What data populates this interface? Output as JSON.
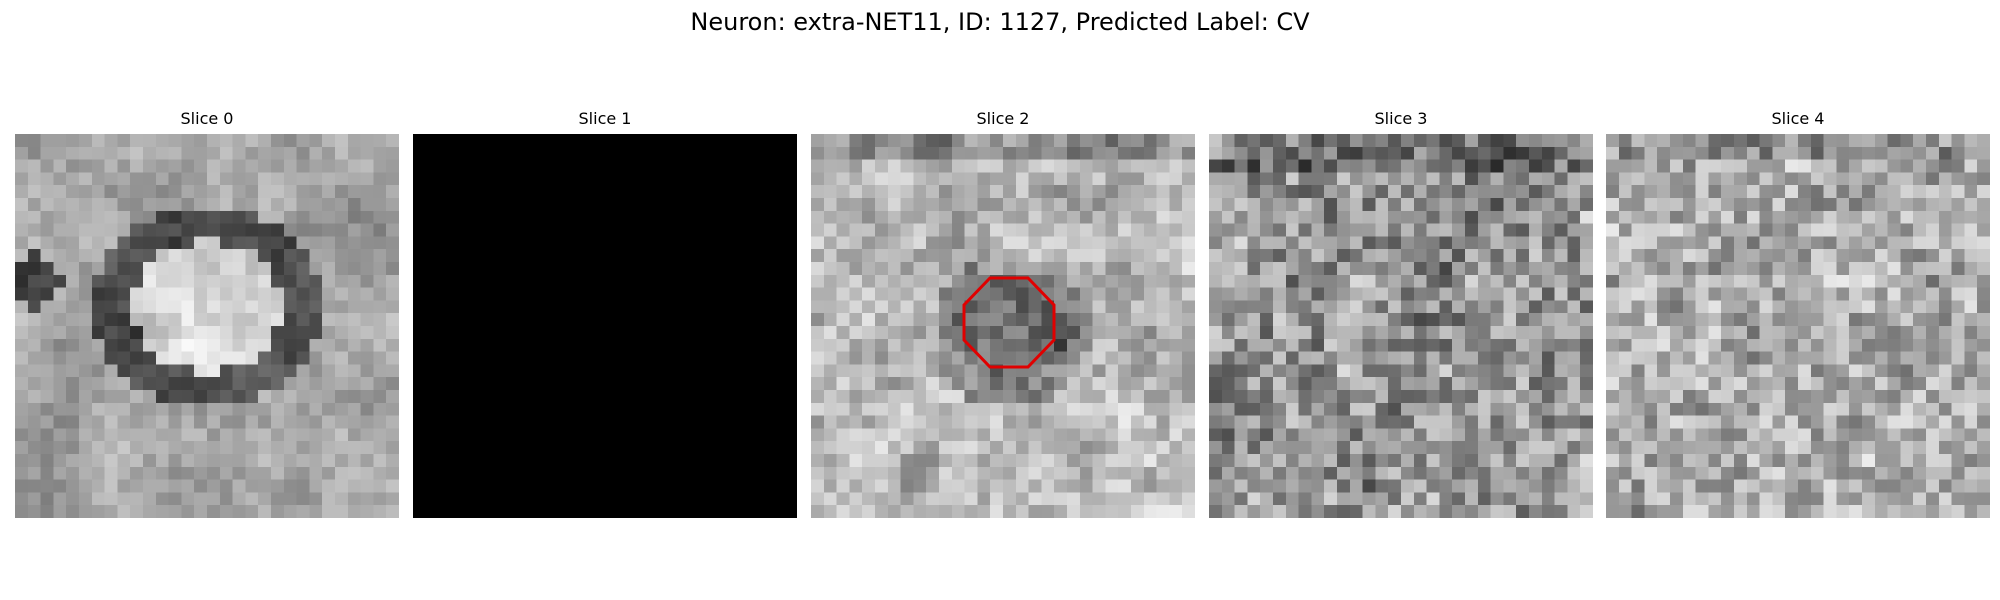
{
  "figure": {
    "title": "Neuron: extra-NET11, ID: 1127, Predicted Label: CV"
  },
  "panels": [
    {
      "title": "Slice 0",
      "image": "grayscale-patch",
      "style": "ring-cell",
      "seed": 11
    },
    {
      "title": "Slice 1",
      "image": "blank-black",
      "style": "black",
      "seed": 0
    },
    {
      "title": "Slice 2",
      "image": "grayscale-patch-with-roi",
      "style": "dark-center",
      "seed": 23
    },
    {
      "title": "Slice 3",
      "image": "grayscale-patch",
      "style": "noisy-mid",
      "seed": 37
    },
    {
      "title": "Slice 4",
      "image": "grayscale-patch",
      "style": "noisy-light",
      "seed": 53
    }
  ],
  "roi_outline": {
    "shape": "octagon",
    "color": "#e00000",
    "panel": "Slice 2"
  }
}
